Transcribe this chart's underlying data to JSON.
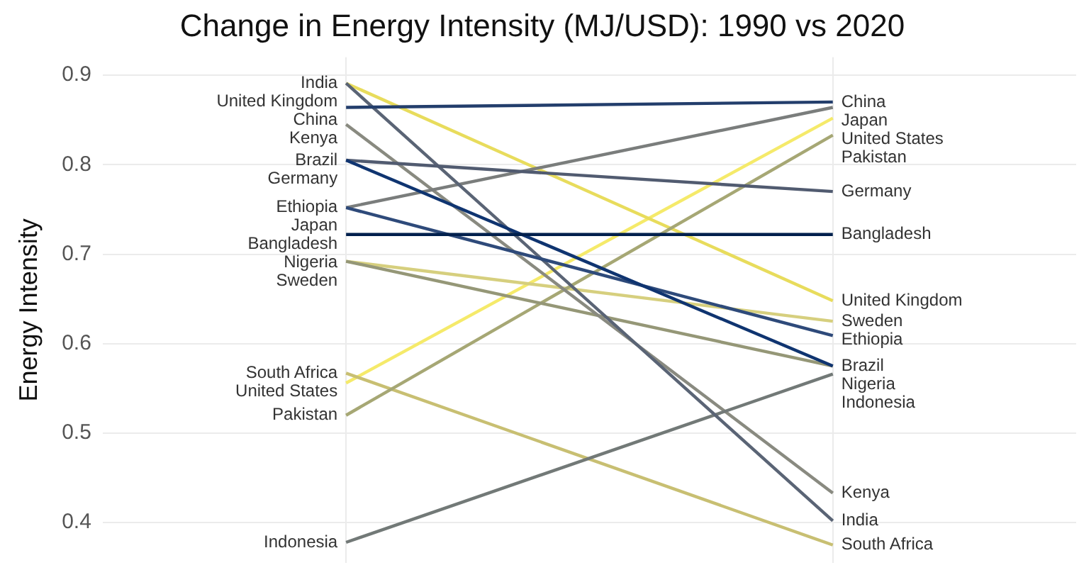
{
  "chart_data": {
    "type": "line",
    "title": "Change in Energy Intensity (MJ/USD): 1990 vs 2020",
    "ylabel": "Energy Intensity",
    "categories": [
      null,
      null
    ],
    "ylim": [
      0.355,
      0.92
    ],
    "yticks": [
      0.4,
      0.5,
      0.6,
      0.7,
      0.8,
      0.9
    ],
    "grid": true,
    "legend": false,
    "tick_labels": "y",
    "marker": "none",
    "series": [
      {
        "name": "Bangladesh",
        "color": "#00204d",
        "values": [
          0.722,
          0.722
        ]
      },
      {
        "name": "Brazil",
        "color": "#0f3470",
        "values": [
          0.805,
          0.575
        ]
      },
      {
        "name": "China",
        "color": "#233e6c",
        "values": [
          0.864,
          0.87
        ]
      },
      {
        "name": "Ethiopia",
        "color": "#2e4a7a",
        "values": [
          0.752,
          0.609
        ]
      },
      {
        "name": "Germany",
        "color": "#515b70",
        "values": [
          0.805,
          0.77
        ]
      },
      {
        "name": "India",
        "color": "#5a6475",
        "values": [
          0.891,
          0.402
        ]
      },
      {
        "name": "Indonesia",
        "color": "#727977",
        "values": [
          0.378,
          0.566
        ]
      },
      {
        "name": "Japan",
        "color": "#7a7d7c",
        "values": [
          0.752,
          0.864
        ]
      },
      {
        "name": "Kenya",
        "color": "#898a80",
        "values": [
          0.845,
          0.433
        ]
      },
      {
        "name": "Nigeria",
        "color": "#959777",
        "values": [
          0.692,
          0.575
        ]
      },
      {
        "name": "Pakistan",
        "color": "#a6a774",
        "values": [
          0.52,
          0.833
        ]
      },
      {
        "name": "South Africa",
        "color": "#c8bf72",
        "values": [
          0.567,
          0.375
        ]
      },
      {
        "name": "Sweden",
        "color": "#d6cf7e",
        "values": [
          0.692,
          0.625
        ]
      },
      {
        "name": "United Kingdom",
        "color": "#e8dc5c",
        "values": [
          0.891,
          0.648
        ]
      },
      {
        "name": "United States",
        "color": "#f5ea6a",
        "values": [
          0.556,
          0.852
        ]
      }
    ]
  }
}
